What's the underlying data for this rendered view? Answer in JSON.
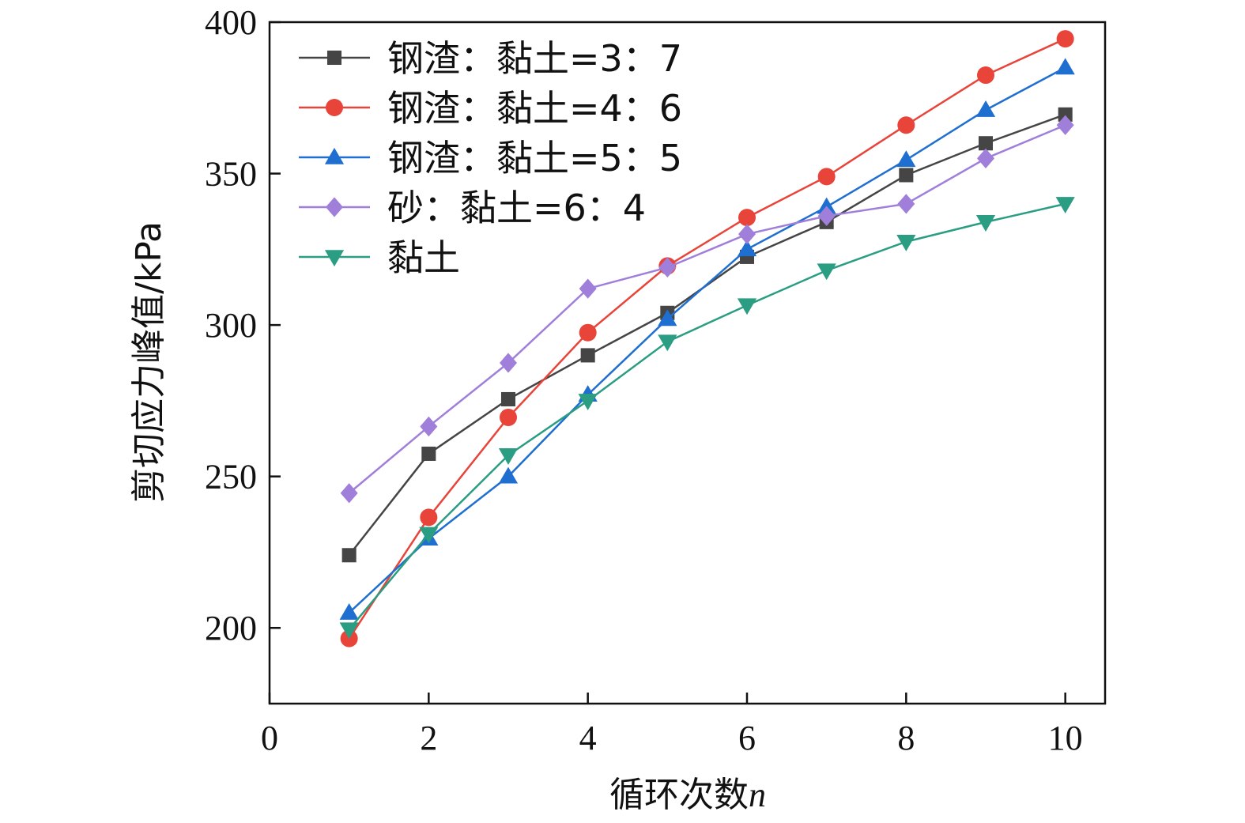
{
  "chart_data": {
    "type": "line",
    "title": "",
    "xlabel": "循环次数",
    "xlabel_var": "n",
    "ylabel": "剪切应力峰值/kPa",
    "xlim": [
      0,
      10.5
    ],
    "ylim": [
      175,
      400
    ],
    "xticks": [
      "0",
      "2",
      "4",
      "6",
      "8",
      "10"
    ],
    "yticks": [
      "200",
      "250",
      "300",
      "350",
      "400"
    ],
    "grid": false,
    "legend_position": "top-left",
    "x": [
      1,
      2,
      3,
      4,
      5,
      6,
      7,
      8,
      9,
      10
    ],
    "series": [
      {
        "name": "钢渣：黏土=3：7",
        "marker": "square",
        "color": "#454545",
        "values": [
          224,
          257.5,
          275.5,
          290,
          304,
          322.5,
          334,
          349.5,
          360,
          369.5
        ]
      },
      {
        "name": "钢渣：黏土=4：6",
        "marker": "circle",
        "color": "#e8443a",
        "values": [
          196.5,
          236.5,
          269.5,
          297.5,
          319.5,
          335.5,
          349,
          366,
          382.5,
          394.5
        ]
      },
      {
        "name": "钢渣：黏土=5：5",
        "marker": "triangle-up",
        "color": "#1f6fd1",
        "values": [
          205,
          229.5,
          250,
          277,
          302,
          325,
          339,
          354.5,
          371,
          385
        ]
      },
      {
        "name": "砂：黏土=6：4",
        "marker": "diamond",
        "color": "#a07fdb",
        "values": [
          244.5,
          266.5,
          287.5,
          312,
          319,
          330,
          336,
          340,
          355,
          366
        ]
      },
      {
        "name": "黏土",
        "marker": "triangle-down",
        "color": "#2a9d82",
        "values": [
          199.5,
          231,
          257,
          275,
          294.5,
          306.5,
          318,
          327.5,
          334,
          340
        ]
      }
    ]
  }
}
